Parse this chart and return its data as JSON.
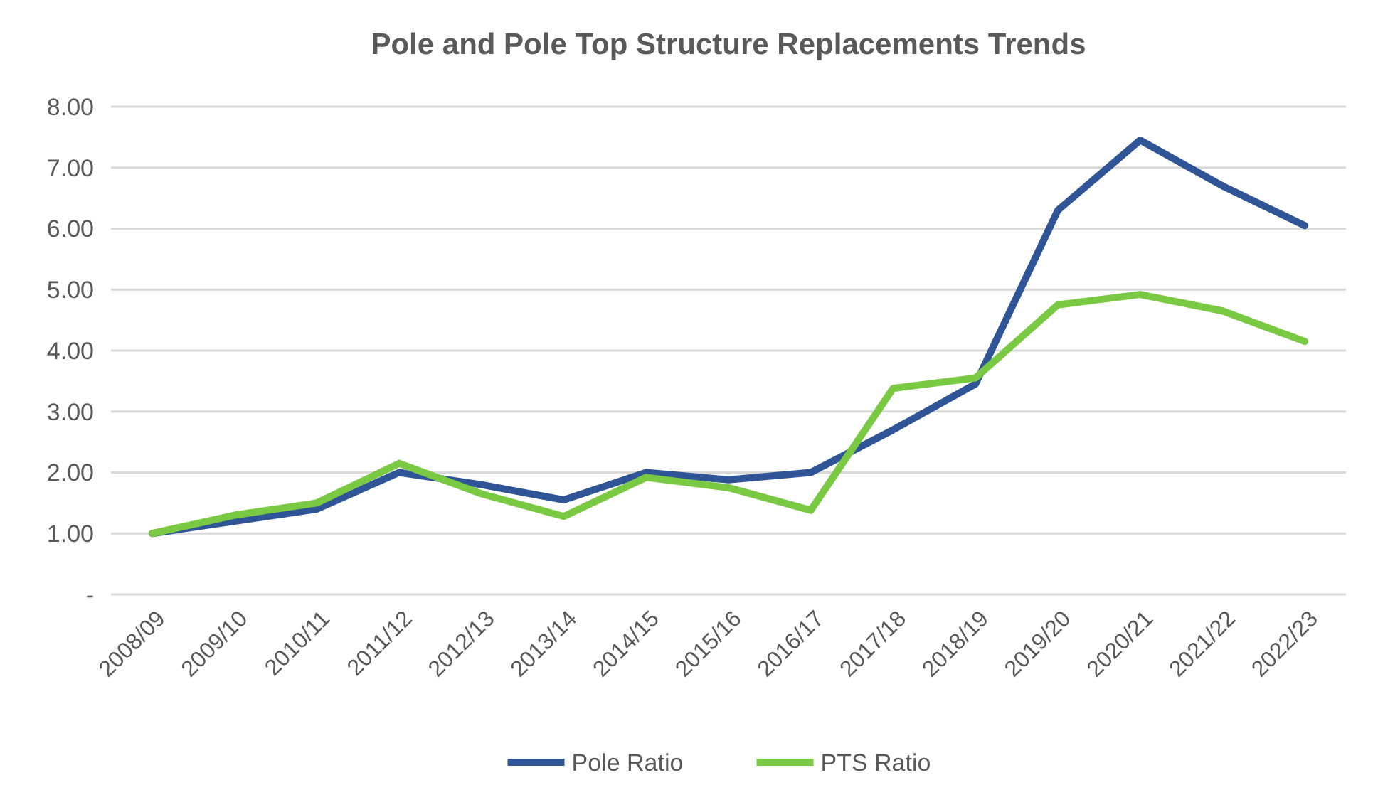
{
  "chart_data": {
    "type": "line",
    "title": "Pole and Pole Top Structure Replacements Trends",
    "categories": [
      "2008/09",
      "2009/10",
      "2010/11",
      "2011/12",
      "2012/13",
      "2013/14",
      "2014/15",
      "2015/16",
      "2016/17",
      "2017/18",
      "2018/19",
      "2019/20",
      "2020/21",
      "2021/22",
      "2022/23"
    ],
    "series": [
      {
        "name": "Pole Ratio",
        "color": "#2f5597",
        "values": [
          1.0,
          1.2,
          1.4,
          2.0,
          1.8,
          1.55,
          2.0,
          1.88,
          2.0,
          2.7,
          3.45,
          6.3,
          7.45,
          6.7,
          6.05
        ]
      },
      {
        "name": "PTS Ratio",
        "color": "#7ac943",
        "values": [
          1.0,
          1.3,
          1.5,
          2.15,
          1.65,
          1.28,
          1.92,
          1.75,
          1.38,
          3.38,
          3.55,
          4.75,
          4.92,
          4.65,
          4.15
        ]
      }
    ],
    "ylim": [
      0,
      8
    ],
    "yticks": [
      {
        "value": 0,
        "label": "-"
      },
      {
        "value": 1,
        "label": "1.00"
      },
      {
        "value": 2,
        "label": "2.00"
      },
      {
        "value": 3,
        "label": "3.00"
      },
      {
        "value": 4,
        "label": "4.00"
      },
      {
        "value": 5,
        "label": "5.00"
      },
      {
        "value": 6,
        "label": "6.00"
      },
      {
        "value": 7,
        "label": "7.00"
      },
      {
        "value": 8,
        "label": "8.00"
      }
    ],
    "grid": "y",
    "legend": "bottom",
    "line_style": "solid",
    "marker": "none"
  }
}
